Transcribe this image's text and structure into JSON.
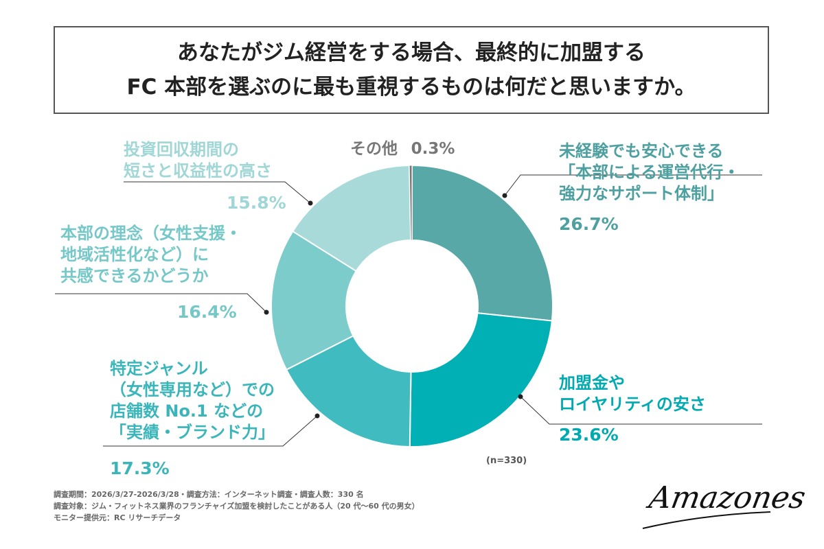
{
  "title": {
    "line1": "あなたがジム経営をする場合、最終的に加盟する",
    "line2": "FC 本部を選ぶのに最も重視するものは何だと思いますか。"
  },
  "chart_data": {
    "type": "pie",
    "style": "donut",
    "start_angle_deg": 0,
    "direction": "clockwise",
    "slices": [
      {
        "label_lines": [
          "未経験でも安心できる",
          "「本部による運営代行・",
          "強力なサポート体制」"
        ],
        "value": 26.7,
        "value_label": "26.7%",
        "color": "#58a8a8",
        "label_color": "#4ea0a0"
      },
      {
        "label_lines": [
          "加盟金や",
          "ロイヤリティの安さ"
        ],
        "value": 23.6,
        "value_label": "23.6%",
        "color": "#00b0b4",
        "label_color": "#00aab0"
      },
      {
        "label_lines": [
          "特定ジャンル",
          "（女性専用など）での",
          "店舗数 No.1 などの",
          "「実績・ブランド力」"
        ],
        "value": 17.3,
        "value_label": "17.3%",
        "color": "#40bcc0",
        "label_color": "#3ab6ba"
      },
      {
        "label_lines": [
          "本部の理念（女性支援・",
          "地域活性化など）に",
          "共感できるかどうか"
        ],
        "value": 16.4,
        "value_label": "16.4%",
        "color": "#7ccccc",
        "label_color": "#76c8c8"
      },
      {
        "label_lines": [
          "投資回収期間の",
          "短さと収益性の高さ"
        ],
        "value": 15.8,
        "value_label": "15.8%",
        "color": "#a8dada",
        "label_color": "#a0d6d6"
      },
      {
        "label_lines": [
          "その他"
        ],
        "value": 0.3,
        "value_label": "0.3%",
        "color": "#777777",
        "label_color": "#777777"
      }
    ],
    "sample_note": "(n=330)"
  },
  "footnotes": [
    "調査期間：2026/3/27-2026/3/28・調査方法：インターネット調査・調査人数：330 名",
    "調査対象：ジム・フィットネス業界のフランチャイズ加盟を検討したことがある人（20 代～60 代の男女）",
    "モニター提供元：RC リサーチデータ"
  ],
  "logo": "Amazones"
}
